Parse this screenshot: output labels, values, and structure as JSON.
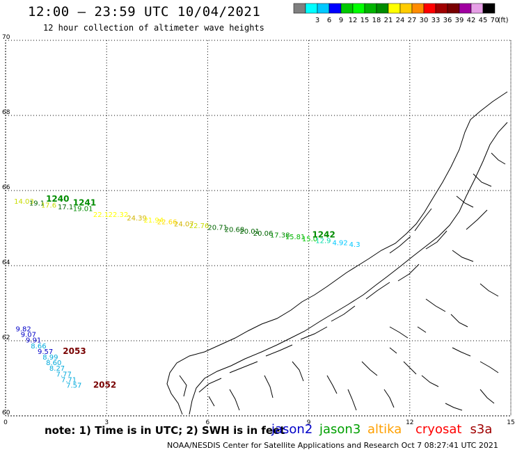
{
  "header": {
    "title": "12:00 – 23:59 UTC 10/04/2021",
    "subtitle": "12 hour collection of altimeter wave heights"
  },
  "scale": {
    "unit": "(ft)",
    "bins": [
      {
        "label": "",
        "color": "#7f7f7f"
      },
      {
        "label": "3",
        "color": "#00ffff"
      },
      {
        "label": "6",
        "color": "#00c8ff"
      },
      {
        "label": "9",
        "color": "#0000ff"
      },
      {
        "label": "12",
        "color": "#00c800"
      },
      {
        "label": "15",
        "color": "#00ff00"
      },
      {
        "label": "18",
        "color": "#00b400"
      },
      {
        "label": "21",
        "color": "#008c00"
      },
      {
        "label": "24",
        "color": "#ffff00"
      },
      {
        "label": "27",
        "color": "#ffcc00"
      },
      {
        "label": "30",
        "color": "#ff8c00"
      },
      {
        "label": "33",
        "color": "#ff0000"
      },
      {
        "label": "36",
        "color": "#a00000"
      },
      {
        "label": "39",
        "color": "#780000"
      },
      {
        "label": "42",
        "color": "#a000a0"
      },
      {
        "label": "45",
        "color": "#e6a0e6"
      },
      {
        "label": "70",
        "color": "#000000"
      }
    ]
  },
  "axes": {
    "lon_ticks": [
      "0",
      "3",
      "6",
      "9",
      "12",
      "15"
    ],
    "lat_ticks": [
      "70",
      "68",
      "66",
      "64",
      "62",
      "60"
    ],
    "lon_range": [
      0,
      15
    ],
    "lat_range": [
      60,
      70
    ]
  },
  "tracks": [
    {
      "id": "jason3-a",
      "color": "#008c00",
      "time": "1240",
      "time_at": [
        1.2,
        65.7
      ],
      "points": [
        {
          "lon": 0.25,
          "lat": 65.65,
          "v": "14.03",
          "c": "#c8dc00"
        },
        {
          "lon": 0.7,
          "lat": 65.6,
          "v": "19.1",
          "c": "#006400"
        },
        {
          "lon": 1.05,
          "lat": 65.55,
          "v": "17.6",
          "c": "#c8dc00"
        },
        {
          "lon": 1.55,
          "lat": 65.5,
          "v": "17.1",
          "c": "#006400"
        },
        {
          "lon": 2.0,
          "lat": 65.45,
          "v": "19.01",
          "c": "#008c00"
        }
      ]
    },
    {
      "id": "jason3-b",
      "color": "#008c00",
      "time": "1241",
      "time_at": [
        2.0,
        65.6
      ],
      "points": [
        {
          "lon": 2.6,
          "lat": 65.3,
          "v": "22.1",
          "c": "#ffff00"
        },
        {
          "lon": 3.05,
          "lat": 65.3,
          "v": "22.32",
          "c": "#ffff00"
        },
        {
          "lon": 3.6,
          "lat": 65.2,
          "v": "24.39",
          "c": "#d2b400"
        },
        {
          "lon": 4.1,
          "lat": 65.15,
          "v": "21.94",
          "c": "#ffff00"
        },
        {
          "lon": 4.5,
          "lat": 65.1,
          "v": "22.66",
          "c": "#ffdc00"
        },
        {
          "lon": 5.0,
          "lat": 65.05,
          "v": "24.07",
          "c": "#d2b400"
        },
        {
          "lon": 5.45,
          "lat": 65.0,
          "v": "22.76",
          "c": "#c8dc00"
        },
        {
          "lon": 6.0,
          "lat": 64.95,
          "v": "20.71",
          "c": "#006400"
        },
        {
          "lon": 6.5,
          "lat": 64.9,
          "v": "20.68",
          "c": "#006400"
        },
        {
          "lon": 6.95,
          "lat": 64.85,
          "v": "20.01",
          "c": "#006400"
        },
        {
          "lon": 7.35,
          "lat": 64.8,
          "v": "20.06",
          "c": "#006400"
        },
        {
          "lon": 7.85,
          "lat": 64.75,
          "v": "17.38",
          "c": "#008c00"
        },
        {
          "lon": 8.3,
          "lat": 64.7,
          "v": "15.81",
          "c": "#00b400"
        }
      ]
    },
    {
      "id": "jason3-c",
      "color": "#008c00",
      "time": "1242",
      "time_at": [
        9.1,
        64.75
      ],
      "points": [
        {
          "lon": 8.8,
          "lat": 64.65,
          "v": "15.0",
          "c": "#00c800"
        },
        {
          "lon": 9.2,
          "lat": 64.6,
          "v": "12.9",
          "c": "#00dcaa"
        },
        {
          "lon": 9.7,
          "lat": 64.55,
          "v": "4.92",
          "c": "#00c8ff"
        },
        {
          "lon": 10.2,
          "lat": 64.5,
          "v": "4.3",
          "c": "#00c8ff"
        }
      ]
    },
    {
      "id": "cryosat-a",
      "color": "#780000",
      "time": "2053",
      "time_at": [
        1.7,
        61.65
      ],
      "points": [
        {
          "lon": 0.3,
          "lat": 62.25,
          "v": "9.82",
          "c": "#0000c8"
        },
        {
          "lon": 0.45,
          "lat": 62.1,
          "v": "9.07",
          "c": "#0000c8"
        },
        {
          "lon": 0.6,
          "lat": 61.95,
          "v": "9.91",
          "c": "#0000c8"
        },
        {
          "lon": 0.75,
          "lat": 61.8,
          "v": "8.66",
          "c": "#00aadc"
        },
        {
          "lon": 0.95,
          "lat": 61.65,
          "v": "9.57",
          "c": "#0000c8"
        },
        {
          "lon": 1.1,
          "lat": 61.5,
          "v": "8.99",
          "c": "#00aadc"
        },
        {
          "lon": 1.2,
          "lat": 61.35,
          "v": "8.60",
          "c": "#00aadc"
        },
        {
          "lon": 1.3,
          "lat": 61.2,
          "v": "8.27",
          "c": "#00aadc"
        },
        {
          "lon": 1.5,
          "lat": 61.05,
          "v": "7.77",
          "c": "#00aadc"
        },
        {
          "lon": 1.65,
          "lat": 60.9,
          "v": "7.71",
          "c": "#00aadc"
        },
        {
          "lon": 1.8,
          "lat": 60.75,
          "v": "7.57",
          "c": "#00aadc"
        }
      ]
    },
    {
      "id": "cryosat-b",
      "color": "#780000",
      "time": "2052",
      "time_at": [
        2.6,
        60.75
      ],
      "points": []
    }
  ],
  "notes": {
    "note": "note: 1) Time is in UTC; 2) SWH is in feet",
    "satellites": [
      {
        "name": "jason2",
        "color": "#0000c8"
      },
      {
        "name": "jason3",
        "color": "#00a000"
      },
      {
        "name": "altika",
        "color": "#ffa000"
      },
      {
        "name": "cryosat",
        "color": "#ff0000"
      },
      {
        "name": "s3a",
        "color": "#a00000"
      }
    ],
    "credit": "NOAA/NESDIS Center for Satellite Applications and Research   Oct  7 08:27:41 UTC 2021"
  }
}
